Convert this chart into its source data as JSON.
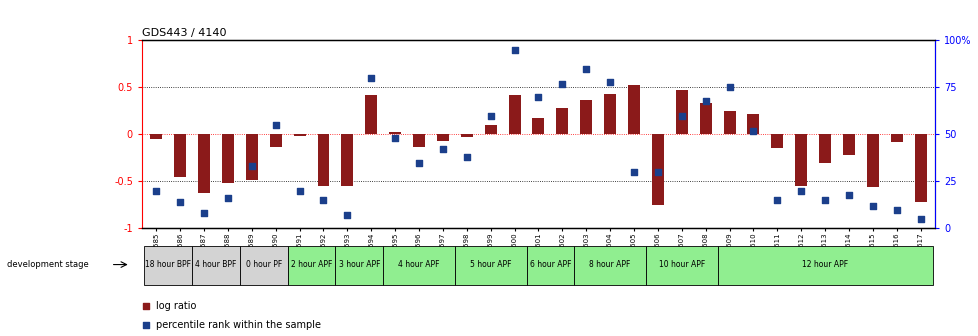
{
  "title": "GDS443 / 4140",
  "samples": [
    "GSM4585",
    "GSM4586",
    "GSM4587",
    "GSM4588",
    "GSM4589",
    "GSM4590",
    "GSM4591",
    "GSM4592",
    "GSM4593",
    "GSM4594",
    "GSM4595",
    "GSM4596",
    "GSM4597",
    "GSM4598",
    "GSM4599",
    "GSM4600",
    "GSM4601",
    "GSM4602",
    "GSM4603",
    "GSM4604",
    "GSM4605",
    "GSM4606",
    "GSM4607",
    "GSM4608",
    "GSM4609",
    "GSM4610",
    "GSM4611",
    "GSM4612",
    "GSM4613",
    "GSM4614",
    "GSM4615",
    "GSM4616",
    "GSM4617"
  ],
  "log_ratio": [
    -0.05,
    -0.45,
    -0.62,
    -0.52,
    -0.48,
    -0.13,
    -0.02,
    -0.55,
    -0.55,
    0.42,
    0.03,
    -0.13,
    -0.07,
    -0.03,
    0.1,
    0.42,
    0.17,
    0.28,
    0.37,
    0.43,
    0.52,
    -0.75,
    0.47,
    0.33,
    0.25,
    0.22,
    -0.14,
    -0.55,
    -0.3,
    -0.22,
    -0.56,
    -0.08,
    -0.72
  ],
  "percentile": [
    20,
    14,
    8,
    16,
    33,
    55,
    20,
    15,
    7,
    80,
    48,
    35,
    42,
    38,
    60,
    95,
    70,
    77,
    85,
    78,
    30,
    30,
    60,
    68,
    75,
    52,
    15,
    20,
    15,
    18,
    12,
    10,
    5
  ],
  "stages": [
    {
      "label": "18 hour BPF",
      "start": 0,
      "end": 2,
      "color": "#d3d3d3"
    },
    {
      "label": "4 hour BPF",
      "start": 2,
      "end": 4,
      "color": "#d3d3d3"
    },
    {
      "label": "0 hour PF",
      "start": 4,
      "end": 6,
      "color": "#d3d3d3"
    },
    {
      "label": "2 hour APF",
      "start": 6,
      "end": 8,
      "color": "#90ee90"
    },
    {
      "label": "3 hour APF",
      "start": 8,
      "end": 10,
      "color": "#90ee90"
    },
    {
      "label": "4 hour APF",
      "start": 10,
      "end": 13,
      "color": "#90ee90"
    },
    {
      "label": "5 hour APF",
      "start": 13,
      "end": 16,
      "color": "#90ee90"
    },
    {
      "label": "6 hour APF",
      "start": 16,
      "end": 18,
      "color": "#90ee90"
    },
    {
      "label": "8 hour APF",
      "start": 18,
      "end": 21,
      "color": "#90ee90"
    },
    {
      "label": "10 hour APF",
      "start": 21,
      "end": 24,
      "color": "#90ee90"
    },
    {
      "label": "12 hour APF",
      "start": 24,
      "end": 33,
      "color": "#90ee90"
    }
  ],
  "bar_color": "#8B1A1A",
  "dot_color": "#1B3F8B",
  "ylim": [
    -1.0,
    1.0
  ],
  "yticks": [
    -1,
    -0.5,
    0,
    0.5,
    1
  ],
  "yticklabels": [
    "-1",
    "-0.5",
    "0",
    "0.5",
    "1"
  ],
  "right_ylim": [
    0,
    100
  ],
  "right_yticks": [
    0,
    25,
    50,
    75,
    100
  ],
  "right_yticklabels": [
    "0",
    "25",
    "50",
    "75",
    "100%"
  ],
  "hlines": [
    0.5,
    0.0,
    -0.5
  ],
  "legend_label1": "log ratio",
  "legend_label2": "percentile rank within the sample",
  "dev_stage_label": "development stage"
}
